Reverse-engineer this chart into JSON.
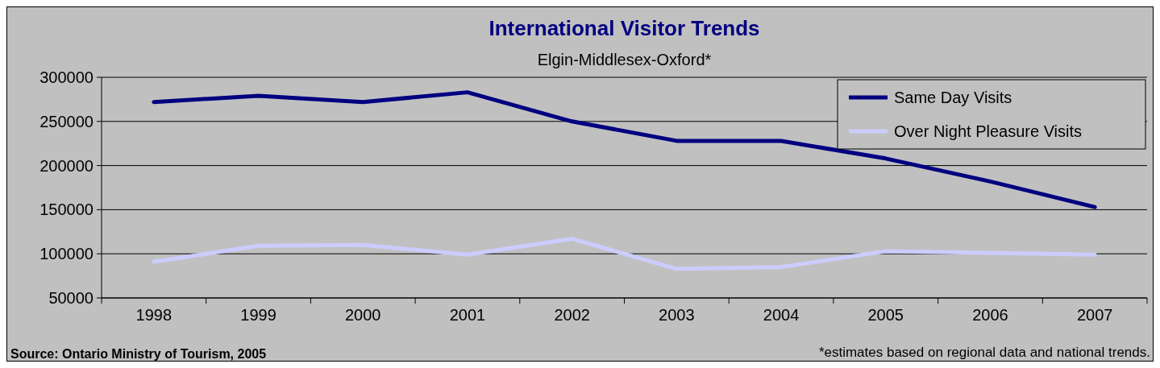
{
  "chart_data": {
    "type": "line",
    "title": "International Visitor Trends",
    "subtitle": "Elgin-Middlesex-Oxford*",
    "categories": [
      "1998",
      "1999",
      "2000",
      "2001",
      "2002",
      "2003",
      "2004",
      "2005",
      "2006",
      "2007"
    ],
    "series": [
      {
        "name": "Same Day Visits",
        "color": "#000080",
        "values": [
          272000,
          279000,
          272000,
          283000,
          250000,
          228000,
          228000,
          208000,
          182000,
          153000
        ]
      },
      {
        "name": "Over Night Pleasure Visits",
        "color": "#ccccff",
        "values": [
          91000,
          109000,
          110000,
          99000,
          117000,
          83000,
          85000,
          103000,
          101000,
          99000
        ]
      }
    ],
    "ylim": [
      50000,
      300000
    ],
    "yticks": [
      50000,
      100000,
      150000,
      200000,
      250000,
      300000
    ],
    "grid": "y",
    "legend": "top right",
    "marker": "none",
    "line_style": "solid",
    "annotations": [
      "Source: Ontario Ministry of Tourism, 2005",
      "*estimates based on regional data and national trends."
    ]
  }
}
